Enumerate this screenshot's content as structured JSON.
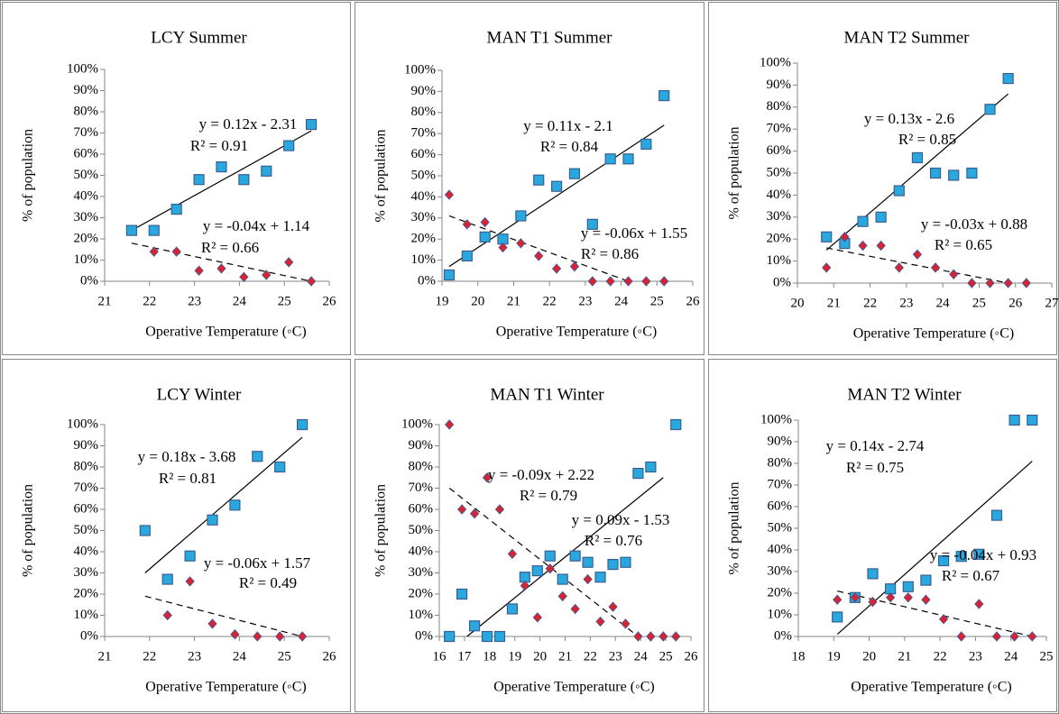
{
  "chart_data": [
    {
      "type": "scatter",
      "title": "LCY Summer",
      "x_label": "Operative Temperature (◦C)",
      "y_label": "% of  population",
      "xlim": [
        21,
        26
      ],
      "xticks": [
        21,
        22,
        23,
        24,
        25,
        26
      ],
      "ylim": [
        0,
        100
      ],
      "yticks": [
        {
          "value": 0,
          "label": "0%"
        },
        {
          "value": 10,
          "label": "10%"
        },
        {
          "value": 20,
          "label": "20%"
        },
        {
          "value": 30,
          "label": "30%"
        },
        {
          "value": 40,
          "label": "40%"
        },
        {
          "value": 50,
          "label": "50%"
        },
        {
          "value": 60,
          "label": "60%"
        },
        {
          "value": 70,
          "label": "70%"
        },
        {
          "value": 80,
          "label": "80%"
        },
        {
          "value": 90,
          "label": "90%"
        },
        {
          "value": 100,
          "label": "100%"
        }
      ],
      "series": [
        {
          "marker": "square",
          "color": "#29a8e0",
          "x": [
            21.6,
            22.1,
            22.6,
            23.1,
            23.6,
            24.1,
            24.6,
            25.1,
            25.6
          ],
          "values": [
            24,
            24,
            34,
            48,
            54,
            48,
            52,
            64,
            74
          ]
        },
        {
          "marker": "diamond",
          "color": "#e0202a",
          "x": [
            22.1,
            22.6,
            23.1,
            23.6,
            24.1,
            24.6,
            25.1,
            25.6
          ],
          "values": [
            14,
            14,
            5,
            6,
            2,
            3,
            9,
            0
          ]
        }
      ],
      "trendlines": [
        {
          "dash": false,
          "x": [
            21.6,
            25.6
          ],
          "values": [
            24,
            71
          ]
        },
        {
          "dash": true,
          "x": [
            21.6,
            25.6
          ],
          "values": [
            18,
            0
          ]
        }
      ],
      "annotations": [
        "y = 0.12x - 2.31",
        "R² = 0.91",
        "y = -0.04x + 1.14",
        "R² = 0.66"
      ]
    },
    {
      "type": "scatter",
      "title": "MAN T1 Summer",
      "x_label": "Operative Temperature (◦C)",
      "y_label": "% of population",
      "xlim": [
        19,
        26
      ],
      "xticks": [
        19,
        20,
        21,
        22,
        23,
        24,
        25,
        26
      ],
      "ylim": [
        0,
        100
      ],
      "yticks": [
        {
          "value": 0,
          "label": "0%"
        },
        {
          "value": 10,
          "label": "10%"
        },
        {
          "value": 20,
          "label": "20%"
        },
        {
          "value": 30,
          "label": "30%"
        },
        {
          "value": 40,
          "label": "40%"
        },
        {
          "value": 50,
          "label": "50%"
        },
        {
          "value": 60,
          "label": "60%"
        },
        {
          "value": 70,
          "label": "70%"
        },
        {
          "value": 80,
          "label": "80%"
        },
        {
          "value": 90,
          "label": "90%"
        },
        {
          "value": 100,
          "label": "100%"
        }
      ],
      "series": [
        {
          "marker": "square",
          "color": "#29a8e0",
          "x": [
            19.2,
            19.7,
            20.2,
            20.7,
            21.2,
            21.7,
            22.2,
            22.7,
            23.2,
            23.7,
            24.2,
            24.7,
            25.2
          ],
          "values": [
            3,
            12,
            21,
            20,
            31,
            48,
            45,
            51,
            27,
            58,
            58,
            65,
            88
          ]
        },
        {
          "marker": "diamond",
          "color": "#e0202a",
          "x": [
            19.2,
            19.7,
            20.2,
            20.7,
            21.2,
            21.7,
            22.2,
            22.7,
            23.2,
            23.7,
            24.2,
            24.7,
            25.2
          ],
          "values": [
            41,
            27,
            28,
            16,
            18,
            12,
            6,
            7,
            0,
            0,
            0,
            0,
            0
          ]
        }
      ],
      "trendlines": [
        {
          "dash": false,
          "x": [
            19.2,
            25.2
          ],
          "values": [
            7,
            74
          ]
        },
        {
          "dash": true,
          "x": [
            19.2,
            24.2
          ],
          "values": [
            31,
            0
          ]
        }
      ],
      "annotations": [
        "y = 0.11x - 2.1",
        "R² = 0.84",
        "y = -0.06x + 1.55",
        "R² = 0.86"
      ]
    },
    {
      "type": "scatter",
      "title": "MAN T2 Summer",
      "x_label": "Operative Temperature (◦C)",
      "y_label": "% of population",
      "xlim": [
        20,
        27
      ],
      "xticks": [
        20,
        21,
        22,
        23,
        24,
        25,
        26,
        27
      ],
      "ylim": [
        0,
        100
      ],
      "yticks": [
        {
          "value": 0,
          "label": "0%"
        },
        {
          "value": 10,
          "label": "10%"
        },
        {
          "value": 20,
          "label": "20%"
        },
        {
          "value": 30,
          "label": "30%"
        },
        {
          "value": 40,
          "label": "40%"
        },
        {
          "value": 50,
          "label": "50%"
        },
        {
          "value": 60,
          "label": "60%"
        },
        {
          "value": 70,
          "label": "70%"
        },
        {
          "value": 80,
          "label": "80%"
        },
        {
          "value": 90,
          "label": "90%"
        },
        {
          "value": 100,
          "label": "100%"
        }
      ],
      "series": [
        {
          "marker": "square",
          "color": "#29a8e0",
          "x": [
            20.8,
            21.3,
            21.8,
            22.3,
            22.8,
            23.3,
            23.8,
            24.3,
            24.8,
            25.3,
            25.8
          ],
          "values": [
            21,
            18,
            28,
            30,
            42,
            57,
            50,
            49,
            50,
            79,
            93
          ]
        },
        {
          "marker": "diamond",
          "color": "#e0202a",
          "x": [
            20.8,
            21.3,
            21.8,
            22.3,
            22.8,
            23.3,
            23.8,
            24.3,
            24.8,
            25.3,
            25.8,
            26.3
          ],
          "values": [
            7,
            21,
            17,
            17,
            7,
            13,
            7,
            4,
            0,
            0,
            0,
            0
          ]
        }
      ],
      "trendlines": [
        {
          "dash": false,
          "x": [
            20.8,
            25.8
          ],
          "values": [
            15,
            86
          ]
        },
        {
          "dash": true,
          "x": [
            20.8,
            25.8
          ],
          "values": [
            16,
            0
          ]
        }
      ],
      "annotations": [
        "y = 0.13x - 2.6",
        "R² = 0.85",
        "y = -0.03x + 0.88",
        "R² = 0.65"
      ]
    },
    {
      "type": "scatter",
      "title": "LCY Winter",
      "x_label": "Operative Temperature (◦C)",
      "y_label": "% of  population",
      "xlim": [
        21,
        26
      ],
      "xticks": [
        21,
        22,
        23,
        24,
        25,
        26
      ],
      "ylim": [
        0,
        100
      ],
      "yticks": [
        {
          "value": 0,
          "label": "0%"
        },
        {
          "value": 10,
          "label": "10%"
        },
        {
          "value": 20,
          "label": "20%"
        },
        {
          "value": 30,
          "label": "30%"
        },
        {
          "value": 40,
          "label": "40%"
        },
        {
          "value": 50,
          "label": "50%"
        },
        {
          "value": 60,
          "label": "60%"
        },
        {
          "value": 70,
          "label": "70%"
        },
        {
          "value": 80,
          "label": "80%"
        },
        {
          "value": 90,
          "label": "90%"
        },
        {
          "value": 100,
          "label": "100%"
        }
      ],
      "series": [
        {
          "marker": "square",
          "color": "#29a8e0",
          "x": [
            21.9,
            22.4,
            22.9,
            23.4,
            23.9,
            24.4,
            24.9,
            25.4
          ],
          "values": [
            50,
            27,
            38,
            55,
            62,
            85,
            80,
            100
          ]
        },
        {
          "marker": "diamond",
          "color": "#e0202a",
          "x": [
            22.4,
            22.9,
            23.4,
            23.9,
            24.4,
            24.9,
            25.4
          ],
          "values": [
            10,
            26,
            6,
            1,
            0,
            0,
            0
          ]
        }
      ],
      "trendlines": [
        {
          "dash": false,
          "x": [
            21.9,
            25.4
          ],
          "values": [
            30,
            94
          ]
        },
        {
          "dash": true,
          "x": [
            21.9,
            25.4
          ],
          "values": [
            19,
            0
          ]
        }
      ],
      "annotations": [
        "y = 0.18x - 3.68",
        "R² = 0.81",
        "y = -0.06x + 1.57",
        "R² = 0.49"
      ]
    },
    {
      "type": "scatter",
      "title": "MAN T1 Winter",
      "x_label": "Operative Temperature (◦C)",
      "y_label": "% of population",
      "xlim": [
        16,
        26
      ],
      "xticks": [
        16,
        17,
        18,
        19,
        20,
        21,
        22,
        23,
        24,
        25,
        26
      ],
      "ylim": [
        0,
        100
      ],
      "yticks": [
        {
          "value": 0,
          "label": "0%"
        },
        {
          "value": 10,
          "label": "10%"
        },
        {
          "value": 20,
          "label": "20%"
        },
        {
          "value": 30,
          "label": "30%"
        },
        {
          "value": 40,
          "label": "40%"
        },
        {
          "value": 50,
          "label": "50%"
        },
        {
          "value": 60,
          "label": "60%"
        },
        {
          "value": 70,
          "label": "70%"
        },
        {
          "value": 80,
          "label": "80%"
        },
        {
          "value": 90,
          "label": "90%"
        },
        {
          "value": 100,
          "label": "100%"
        }
      ],
      "series": [
        {
          "marker": "square",
          "color": "#29a8e0",
          "x": [
            16.4,
            16.9,
            17.4,
            17.9,
            18.4,
            18.9,
            19.4,
            19.9,
            20.4,
            20.9,
            21.4,
            21.9,
            22.4,
            22.9,
            23.4,
            23.9,
            24.4,
            25.4
          ],
          "values": [
            0,
            20,
            5,
            0,
            0,
            13,
            28,
            31,
            38,
            27,
            38,
            35,
            28,
            34,
            35,
            77,
            80,
            100
          ]
        },
        {
          "marker": "diamond",
          "color": "#e0202a",
          "x": [
            16.4,
            16.9,
            17.4,
            17.9,
            18.4,
            18.9,
            19.4,
            19.9,
            20.4,
            20.9,
            21.4,
            21.9,
            22.4,
            22.9,
            23.4,
            23.9,
            24.4,
            24.9,
            25.4
          ],
          "values": [
            100,
            60,
            58,
            75,
            60,
            39,
            24,
            9,
            32,
            19,
            13,
            27,
            7,
            14,
            6,
            0,
            0,
            0,
            0
          ]
        }
      ],
      "trendlines": [
        {
          "dash": false,
          "x": [
            17.1,
            24.9
          ],
          "values": [
            0,
            75
          ]
        },
        {
          "dash": true,
          "x": [
            16.4,
            23.9
          ],
          "values": [
            70,
            0
          ]
        }
      ],
      "annotations": [
        "y = -0.09x + 2.22",
        "R² = 0.79",
        "y = 0.09x - 1.53",
        "R² = 0.76"
      ]
    },
    {
      "type": "scatter",
      "title": "MAN T2 Winter",
      "x_label": "Operative Temperature (◦C)",
      "y_label": "% of population",
      "xlim": [
        18,
        25
      ],
      "xticks": [
        18,
        19,
        20,
        21,
        22,
        23,
        24,
        25
      ],
      "ylim": [
        0,
        100
      ],
      "yticks": [
        {
          "value": 0,
          "label": "0%"
        },
        {
          "value": 10,
          "label": "10%"
        },
        {
          "value": 20,
          "label": "20%"
        },
        {
          "value": 30,
          "label": "30%"
        },
        {
          "value": 40,
          "label": "40%"
        },
        {
          "value": 50,
          "label": "50%"
        },
        {
          "value": 60,
          "label": "60%"
        },
        {
          "value": 70,
          "label": "70%"
        },
        {
          "value": 80,
          "label": "80%"
        },
        {
          "value": 90,
          "label": "90%"
        },
        {
          "value": 100,
          "label": "100%"
        }
      ],
      "series": [
        {
          "marker": "square",
          "color": "#29a8e0",
          "x": [
            19.1,
            19.6,
            20.1,
            20.6,
            21.1,
            21.6,
            22.1,
            22.6,
            23.1,
            23.6,
            24.1,
            24.6
          ],
          "values": [
            9,
            18,
            29,
            22,
            23,
            26,
            35,
            37,
            38,
            56,
            100,
            100
          ]
        },
        {
          "marker": "diamond",
          "color": "#e0202a",
          "x": [
            19.1,
            19.6,
            20.1,
            20.6,
            21.1,
            21.6,
            22.1,
            22.6,
            23.1,
            23.6,
            24.1,
            24.6
          ],
          "values": [
            17,
            18,
            16,
            18,
            18,
            17,
            8,
            0,
            15,
            0,
            0,
            0
          ]
        }
      ],
      "trendlines": [
        {
          "dash": false,
          "x": [
            19.1,
            24.6
          ],
          "values": [
            1,
            81
          ]
        },
        {
          "dash": true,
          "x": [
            19.1,
            24.6
          ],
          "values": [
            21,
            0
          ]
        }
      ],
      "annotations": [
        "y = 0.14x - 2.74",
        "R² = 0.75",
        "y = -0.04x + 0.93",
        "R² = 0.67"
      ]
    }
  ]
}
